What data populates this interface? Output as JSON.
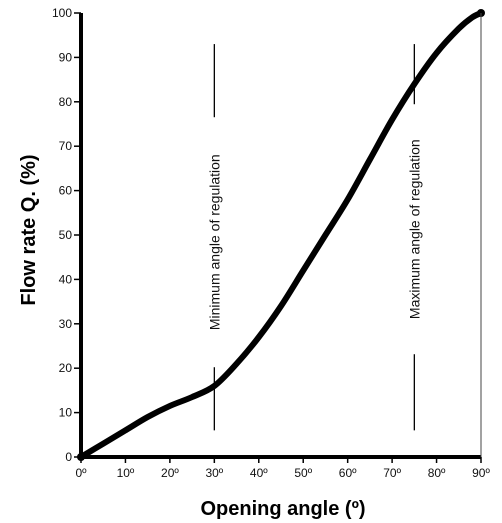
{
  "chart_data": {
    "type": "line",
    "title": "",
    "xlabel": "Opening angle (º)",
    "ylabel": "Flow rate Q. (%)",
    "xlim": [
      0,
      90
    ],
    "ylim": [
      0,
      100
    ],
    "x_ticks": [
      "0º",
      "10º",
      "20º",
      "30º",
      "40º",
      "50º",
      "60º",
      "70º",
      "80º",
      "90º"
    ],
    "y_ticks": [
      "0",
      "10",
      "20",
      "30",
      "40",
      "50",
      "60",
      "70",
      "80",
      "90",
      "100"
    ],
    "grid": false,
    "series": [
      {
        "x": [
          0,
          5,
          10,
          15,
          20,
          25,
          30,
          35,
          40,
          45,
          50,
          55,
          60,
          65,
          70,
          75,
          80,
          85,
          88,
          90
        ],
        "y": [
          0,
          3,
          6,
          9,
          11.5,
          13.5,
          16,
          21,
          27,
          34,
          42,
          50,
          58,
          67,
          76,
          84,
          91,
          96.5,
          99,
          100
        ]
      }
    ],
    "annotations": [
      {
        "label": "Minimum angle of regulation",
        "x": 30,
        "y_range": [
          6,
          93
        ]
      },
      {
        "label": "Maximum angle of regulation",
        "x": 75,
        "y_range": [
          6,
          93
        ]
      }
    ],
    "colors": {
      "line": "#000000",
      "axis": "#000000"
    }
  }
}
